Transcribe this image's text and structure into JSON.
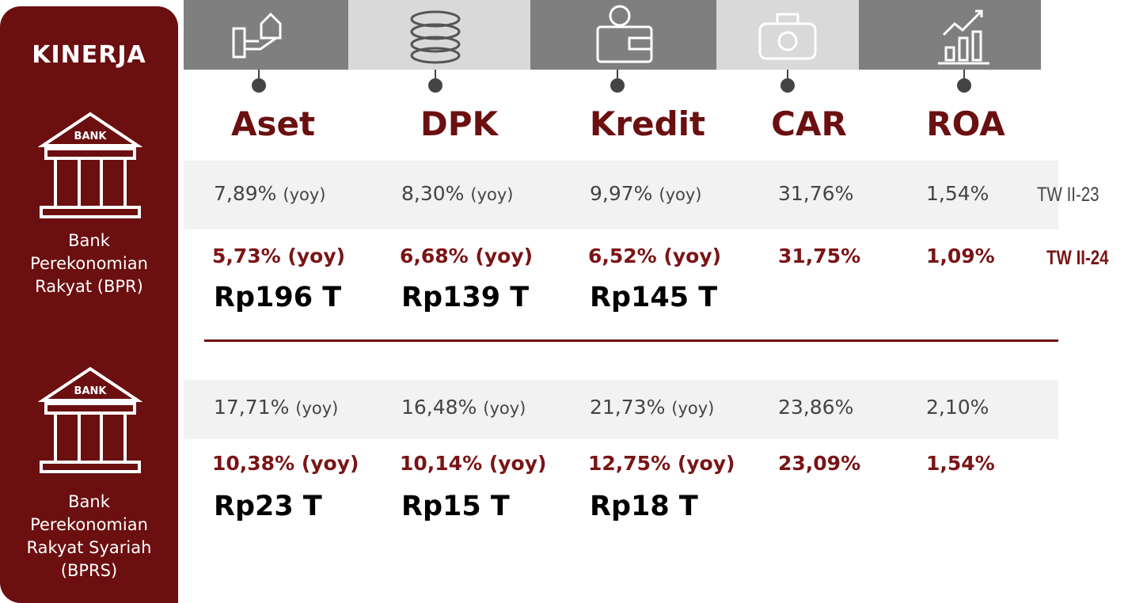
{
  "sidebar": {
    "title": "KINERJA",
    "bank_icon_label": "BANK",
    "banks": [
      "Bank Perekonomian Rakyat (BPR)",
      "Bank Perekonomian Rakyat Syariah (BPRS)"
    ]
  },
  "columns": [
    "Aset",
    "DPK",
    "Kredit",
    "CAR",
    "ROA"
  ],
  "period_labels": [
    "TW II-23",
    "TW II-24"
  ],
  "sections": [
    {
      "previous": [
        {
          "value": "7,89%",
          "note": "(yoy)"
        },
        {
          "value": "8,30%",
          "note": "(yoy)"
        },
        {
          "value": "9,97%",
          "note": "(yoy)"
        },
        {
          "value": "31,76%"
        },
        {
          "value": "1,54%"
        }
      ],
      "current": [
        "5,73% (yoy)",
        "6,68% (yoy)",
        "6,52% (yoy)",
        "31,75%",
        "1,09%"
      ],
      "totals": [
        "Rp196 T",
        "Rp139 T",
        "Rp145 T"
      ]
    },
    {
      "previous": [
        {
          "value": "17,71%",
          "note": "(yoy)"
        },
        {
          "value": "16,48%",
          "note": "(yoy)"
        },
        {
          "value": "21,73%",
          "note": "(yoy)"
        },
        {
          "value": "23,86%"
        },
        {
          "value": "2,10%"
        }
      ],
      "current": [
        "10,38% (yoy)",
        "10,14% (yoy)",
        "12,75% (yoy)",
        "23,09%",
        "1,54%"
      ],
      "totals": [
        "Rp23 T",
        "Rp15 T",
        "Rp18 T"
      ]
    }
  ]
}
